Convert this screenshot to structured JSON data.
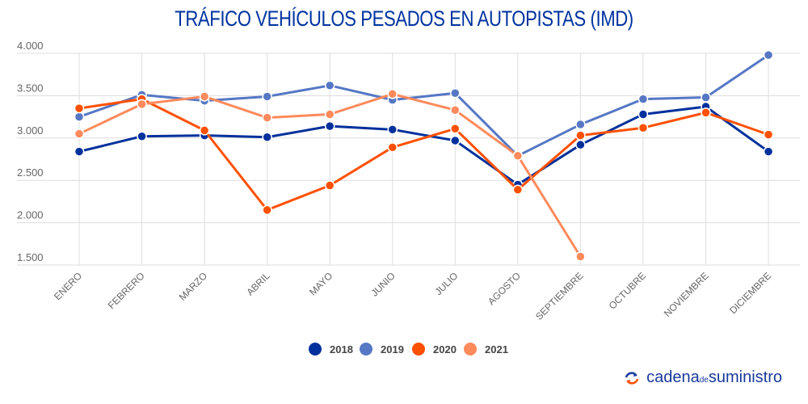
{
  "chart_data": {
    "type": "line",
    "title": "TRÁFICO VEHÍCULOS PESADOS EN AUTOPISTAS (IMD)",
    "categories": [
      "ENERO",
      "FEBRERO",
      "MARZO",
      "ABRIL",
      "MAYO",
      "JUNIO",
      "JULIO",
      "AGOSTO",
      "SEPTIEMBRE",
      "OCTUBRE",
      "NOVIEMBRE",
      "DICIEMBRE"
    ],
    "ylim": [
      1500,
      4000
    ],
    "yticks": [
      1500,
      2000,
      2500,
      3000,
      3500,
      4000
    ],
    "ytick_labels": [
      "1.500",
      "2.000",
      "2.500",
      "3.000",
      "3.500",
      "4.000"
    ],
    "grid": true,
    "legend": "bottom",
    "series": [
      {
        "name": "2018",
        "color": "#00309c",
        "values": [
          2840,
          3020,
          3030,
          3010,
          3140,
          3100,
          2970,
          2450,
          2920,
          3280,
          3370,
          2840
        ]
      },
      {
        "name": "2019",
        "color": "#5577c4",
        "values": [
          3250,
          3510,
          3440,
          3490,
          3620,
          3450,
          3530,
          2790,
          3160,
          3460,
          3480,
          3980
        ]
      },
      {
        "name": "2020",
        "color": "#ff5000",
        "values": [
          3350,
          3460,
          3090,
          2150,
          2440,
          2890,
          3110,
          2390,
          3030,
          3120,
          3300,
          3040
        ]
      },
      {
        "name": "2021",
        "color": "#ff8a5c",
        "values": [
          3050,
          3400,
          3490,
          3240,
          3280,
          3520,
          3330,
          2790,
          1600,
          null,
          null,
          null
        ]
      }
    ]
  },
  "brand": {
    "part1": "cadena",
    "part2": "de",
    "part3": "suministro",
    "icon": "refresh-arrows-icon"
  }
}
